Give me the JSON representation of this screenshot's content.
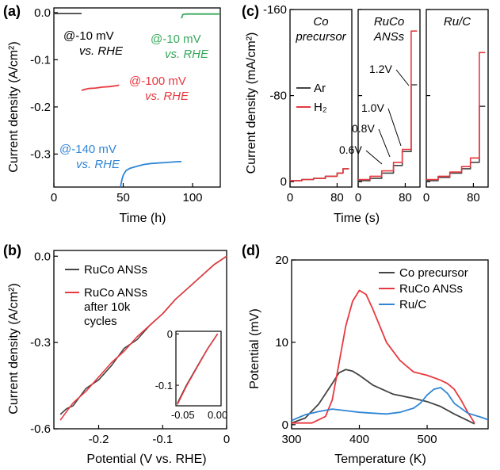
{
  "colors": {
    "black": "#444444",
    "red": "#e8393f",
    "green": "#37a85b",
    "blue": "#2f86d6"
  },
  "chart_data": [
    {
      "panel": "(a)",
      "type": "line",
      "xlabel": "Time (h)",
      "ylabel": "Current density (A/cm²)",
      "xlim": [
        0,
        120
      ],
      "ylim": [
        -0.37,
        0.01
      ],
      "xticks": [
        0,
        50,
        100
      ],
      "yticks": [
        0.0,
        -0.1,
        -0.2,
        -0.3
      ],
      "ytick_labels": [
        "0.0",
        "-0.1",
        "-0.2",
        "-0.3"
      ],
      "series": [
        {
          "color": "#444444",
          "x": [
            0,
            5,
            10,
            15,
            20
          ],
          "y": [
            -0.002,
            -0.002,
            -0.002,
            -0.002,
            -0.002
          ]
        },
        {
          "color": "#e8393f",
          "x": [
            20,
            22,
            25,
            30,
            35,
            40,
            45,
            47
          ],
          "y": [
            -0.165,
            -0.163,
            -0.161,
            -0.16,
            -0.158,
            -0.157,
            -0.155,
            -0.154
          ]
        },
        {
          "color": "#2f86d6",
          "x": [
            48,
            49,
            50,
            52,
            55,
            60,
            65,
            70,
            75,
            80,
            85,
            90,
            92
          ],
          "y": [
            -0.37,
            -0.355,
            -0.345,
            -0.335,
            -0.33,
            -0.326,
            -0.322,
            -0.32,
            -0.319,
            -0.318,
            -0.317,
            -0.316,
            -0.316
          ]
        },
        {
          "color": "#37a85b",
          "x": [
            92,
            93,
            95,
            100,
            110,
            120
          ],
          "y": [
            -0.012,
            -0.004,
            -0.003,
            -0.003,
            -0.003,
            -0.003
          ]
        }
      ],
      "annotations": [
        {
          "text": "@-10 mV",
          "line2": "vs. RHE",
          "color": "#444444"
        },
        {
          "text": "@-10 mV",
          "line2": "vs. RHE",
          "color": "#37a85b"
        },
        {
          "text": "@-100 mV",
          "line2": "vs. RHE",
          "color": "#e8393f"
        },
        {
          "text": "@-140 mV",
          "line2": "vs. RHE",
          "color": "#2f86d6"
        }
      ]
    },
    {
      "panel": "(b)",
      "type": "line",
      "xlabel": "Potential (V vs. RHE)",
      "ylabel": "Current density (A/cm²)",
      "xlim": [
        -0.27,
        0.0
      ],
      "ylim": [
        -0.6,
        0.02
      ],
      "xticks": [
        -0.2,
        -0.1,
        0
      ],
      "xtick_labels": [
        "-0.2",
        "-0.1",
        "0"
      ],
      "yticks": [
        0.0,
        -0.3,
        -0.6
      ],
      "ytick_labels": [
        "0.0",
        "-0.3",
        "-0.6"
      ],
      "series": [
        {
          "name": "RuCo ANSs",
          "color": "#444444",
          "x": [
            -0.26,
            -0.25,
            -0.24,
            -0.22,
            -0.2,
            -0.18,
            -0.16,
            -0.14,
            -0.12,
            -0.1,
            -0.08,
            -0.06,
            -0.04,
            -0.02,
            0
          ],
          "y": [
            -0.55,
            -0.53,
            -0.52,
            -0.46,
            -0.43,
            -0.38,
            -0.32,
            -0.29,
            -0.24,
            -0.2,
            -0.15,
            -0.11,
            -0.07,
            -0.03,
            0
          ]
        },
        {
          "name": "RuCo ANSs after 10k cycles",
          "color": "#e8393f",
          "x": [
            -0.26,
            -0.25,
            -0.24,
            -0.22,
            -0.2,
            -0.18,
            -0.16,
            -0.14,
            -0.12,
            -0.1,
            -0.08,
            -0.06,
            -0.04,
            -0.02,
            0
          ],
          "y": [
            -0.57,
            -0.54,
            -0.51,
            -0.47,
            -0.42,
            -0.37,
            -0.33,
            -0.28,
            -0.24,
            -0.2,
            -0.15,
            -0.11,
            -0.07,
            -0.03,
            0
          ]
        }
      ],
      "inset": {
        "xlim": [
          -0.06,
          0.005
        ],
        "ylim": [
          -0.14,
          0.005
        ],
        "xticks": [
          -0.05,
          0.0
        ],
        "xtick_labels": [
          "-0.05",
          "0.00"
        ],
        "yticks": [
          0,
          -0.1
        ],
        "ytick_labels": [
          "0",
          "-0.1"
        ]
      }
    },
    {
      "panel": "(c)",
      "type": "line",
      "xlabel": "Time (s)",
      "ylabel": "Current density (mA/cm²)",
      "ylim": [
        -160,
        5
      ],
      "yticks": [
        0,
        -80,
        -160
      ],
      "ytick_labels": [
        "0",
        "-80",
        "-160"
      ],
      "subpanels": [
        {
          "title": "Co",
          "title2": "precursor",
          "xticks": [
            0,
            80
          ],
          "series": [
            {
              "name": "Ar",
              "color": "#444444",
              "x": [
                0,
                20,
                20,
                40,
                40,
                60,
                60,
                80,
                80,
                90,
                90,
                100
              ],
              "y": [
                -1,
                -1,
                -2,
                -2,
                -3,
                -3,
                -5,
                -5,
                -8,
                -8,
                -12,
                -12
              ]
            },
            {
              "name": "H₂",
              "color": "#e8393f",
              "x": [
                0,
                20,
                20,
                40,
                40,
                60,
                60,
                80,
                80,
                90,
                90,
                100
              ],
              "y": [
                -1,
                -1,
                -2,
                -2,
                -3,
                -3,
                -5,
                -5,
                -8,
                -8,
                -12,
                -12
              ]
            }
          ]
        },
        {
          "title": "RuCo",
          "title2": "ANSs",
          "xticks": [
            0,
            80
          ],
          "series": [
            {
              "name": "Ar",
              "color": "#444444",
              "x": [
                0,
                20,
                20,
                40,
                40,
                60,
                60,
                75,
                75,
                90,
                90,
                100
              ],
              "y": [
                -1,
                -1,
                -3,
                -3,
                -8,
                -8,
                -15,
                -15,
                -28,
                -28,
                -90,
                -90
              ]
            },
            {
              "name": "H₂",
              "color": "#e8393f",
              "x": [
                0,
                20,
                20,
                40,
                40,
                60,
                60,
                75,
                75,
                90,
                90,
                100
              ],
              "y": [
                -2,
                -2,
                -5,
                -5,
                -10,
                -10,
                -18,
                -18,
                -30,
                -30,
                -140,
                -140
              ]
            }
          ],
          "labels": [
            "0.6V",
            "0.8V",
            "1.0V",
            "1.2V"
          ]
        },
        {
          "title": "Ru/C",
          "title2": "",
          "xticks": [
            0,
            80
          ],
          "series": [
            {
              "name": "Ar",
              "color": "#444444",
              "x": [
                0,
                20,
                20,
                40,
                40,
                60,
                60,
                75,
                75,
                90,
                90,
                100
              ],
              "y": [
                -1,
                -1,
                -4,
                -4,
                -8,
                -8,
                -12,
                -12,
                -18,
                -18,
                -70,
                -70
              ]
            },
            {
              "name": "H₂",
              "color": "#e8393f",
              "x": [
                0,
                20,
                20,
                40,
                40,
                60,
                60,
                75,
                75,
                90,
                90,
                100
              ],
              "y": [
                -2,
                -2,
                -5,
                -5,
                -9,
                -9,
                -14,
                -14,
                -22,
                -22,
                -120,
                -120
              ]
            }
          ]
        }
      ],
      "legend": [
        "Ar",
        "H₂"
      ]
    },
    {
      "panel": "(d)",
      "type": "line",
      "xlabel": "Temperature (K)",
      "ylabel": "Potential (mV)",
      "xlim": [
        300,
        590
      ],
      "ylim": [
        -0.5,
        20
      ],
      "xticks": [
        300,
        400,
        500
      ],
      "yticks": [
        0,
        10,
        20
      ],
      "series": [
        {
          "name": "Co precursor",
          "color": "#444444",
          "x": [
            300,
            320,
            340,
            360,
            370,
            380,
            390,
            400,
            420,
            450,
            480,
            500,
            520,
            540,
            560,
            570
          ],
          "y": [
            0.2,
            0.8,
            2.5,
            5,
            6.3,
            6.7,
            6.5,
            6,
            4.8,
            3.7,
            3.2,
            2.8,
            2.2,
            1.3,
            0.5,
            0.1
          ]
        },
        {
          "name": "RuCo ANSs",
          "color": "#e8393f",
          "x": [
            300,
            330,
            350,
            360,
            370,
            380,
            390,
            400,
            410,
            420,
            430,
            440,
            460,
            480,
            500,
            520,
            530,
            540,
            550,
            560,
            570
          ],
          "y": [
            0.2,
            0.2,
            1,
            3,
            7.5,
            12,
            15,
            16.3,
            15.8,
            14,
            12,
            10,
            7.8,
            6.4,
            6,
            5.4,
            5,
            4.3,
            3,
            1.5,
            0.2
          ]
        },
        {
          "name": "Ru/C",
          "color": "#2f86d6",
          "x": [
            300,
            320,
            340,
            360,
            380,
            400,
            420,
            440,
            460,
            480,
            490,
            500,
            510,
            520,
            530,
            540,
            560,
            580,
            590
          ],
          "y": [
            0.5,
            1.2,
            1.6,
            1.9,
            1.7,
            1.5,
            1.4,
            1.3,
            1.5,
            2,
            2.6,
            3.6,
            4.3,
            4.5,
            3.8,
            2.6,
            1.4,
            0.9,
            0.6
          ]
        }
      ]
    }
  ]
}
